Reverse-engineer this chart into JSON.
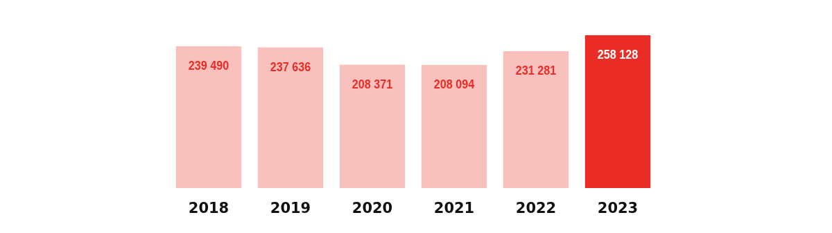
{
  "chart_data": {
    "type": "bar",
    "categories": [
      "2018",
      "2019",
      "2020",
      "2021",
      "2022",
      "2023"
    ],
    "values": [
      239490,
      237636,
      208371,
      208094,
      231281,
      258128
    ],
    "colors": [
      "#f9c1be",
      "#f9c1be",
      "#f9c1be",
      "#f9c1be",
      "#f9c1be",
      "#e92d26"
    ],
    "value_labels": [
      "239 490",
      "237 636",
      "208 371",
      "208 094",
      "231 281",
      "258 128"
    ]
  }
}
